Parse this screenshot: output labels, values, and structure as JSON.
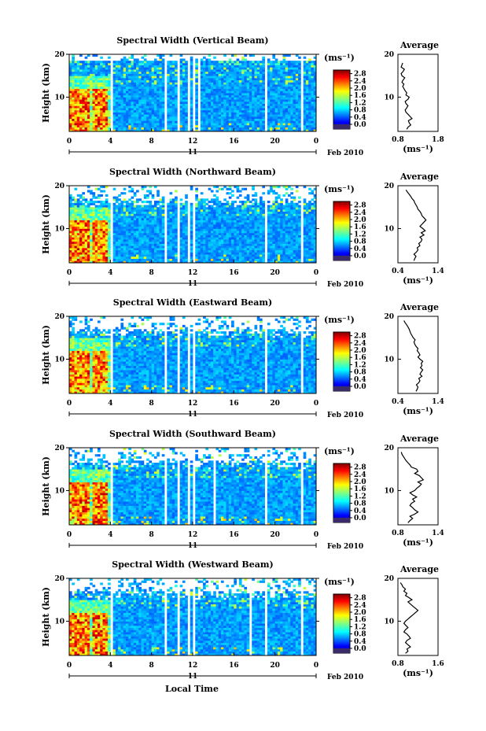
{
  "figure": {
    "xlabel": "Local Time",
    "date_label": "Feb 2010",
    "day_label": "11"
  },
  "chart_data": [
    {
      "type": "heatmap",
      "title": "Spectral Width (Vertical Beam)",
      "xlabel": "Local Time",
      "ylabel": "Height (km)",
      "x_ticks": [
        "0",
        "4",
        "8",
        "12",
        "16",
        "20",
        "0"
      ],
      "xlim_hours": [
        0,
        24
      ],
      "y_ticks": [
        "10",
        "20"
      ],
      "ylim": [
        2,
        20
      ],
      "colorbar": {
        "label": "(ms⁻¹)",
        "ticks": [
          "0.0",
          "0.4",
          "0.8",
          "1.2",
          "1.6",
          "2.0",
          "2.4",
          "2.8"
        ],
        "range": [
          0,
          3.0
        ]
      },
      "data_gaps_hours": [
        [
          4.1,
          4.3
        ],
        [
          8.4,
          8.6
        ],
        [
          9.3,
          9.5
        ],
        [
          10.6,
          10.7
        ],
        [
          11.5,
          11.7
        ],
        [
          12.0,
          12.3
        ],
        [
          12.6,
          12.8
        ],
        [
          19.0,
          19.2
        ],
        [
          22.6,
          22.8
        ]
      ],
      "average_profile": {
        "title": "Average",
        "xlabel": "(ms⁻¹)",
        "x_ticks": [
          "0.8",
          "1.8"
        ],
        "xlim": [
          0.8,
          1.8
        ],
        "y_ticks": [
          "10",
          "20"
        ],
        "height_km": [
          2.5,
          3,
          3.5,
          4,
          4.5,
          5,
          5.5,
          6,
          6.5,
          7,
          7.5,
          8,
          8.5,
          9,
          9.5,
          10,
          10.5,
          11,
          11.5,
          12,
          12.5,
          13,
          13.5,
          14,
          14.5,
          15,
          15.5,
          16,
          16.5,
          17,
          17.5,
          18
        ],
        "width_ms": [
          1.02,
          1.05,
          1.12,
          1.08,
          1.06,
          1.15,
          1.1,
          1.05,
          1.0,
          0.98,
          1.02,
          1.05,
          1.0,
          0.98,
          1.05,
          1.08,
          1.0,
          1.02,
          0.98,
          0.95,
          0.92,
          0.95,
          0.9,
          0.93,
          0.97,
          0.9,
          0.88,
          0.93,
          0.96,
          0.88,
          0.9,
          0.92
        ]
      }
    },
    {
      "type": "heatmap",
      "title": "Spectral Width (Northward Beam)",
      "xlabel": "Local Time",
      "ylabel": "Height (km)",
      "x_ticks": [
        "0",
        "4",
        "8",
        "12",
        "16",
        "20",
        "0"
      ],
      "xlim_hours": [
        0,
        24
      ],
      "y_ticks": [
        "10",
        "20"
      ],
      "ylim": [
        2,
        20
      ],
      "colorbar": {
        "label": "(ms⁻¹)",
        "ticks": [
          "0.0",
          "0.4",
          "0.8",
          "1.2",
          "1.6",
          "2.0",
          "2.4",
          "2.8"
        ],
        "range": [
          0,
          3.0
        ]
      },
      "data_gaps_hours": [
        [
          4.1,
          4.3
        ],
        [
          8.4,
          8.6
        ],
        [
          9.3,
          9.5
        ],
        [
          10.6,
          10.7
        ],
        [
          11.5,
          11.7
        ],
        [
          12.0,
          12.3
        ],
        [
          19.0,
          19.2
        ],
        [
          22.6,
          22.8
        ]
      ],
      "average_profile": {
        "title": "Average",
        "xlabel": "(ms⁻¹)",
        "x_ticks": [
          "0.4",
          "1.4"
        ],
        "xlim": [
          0.4,
          1.4
        ],
        "y_ticks": [
          "10",
          "20"
        ],
        "height_km": [
          2.5,
          3,
          3.5,
          4,
          4.5,
          5,
          5.5,
          6,
          6.5,
          7,
          7.5,
          8,
          8.5,
          9,
          9.5,
          10,
          10.5,
          11,
          11.5,
          12,
          12.5,
          13,
          13.5,
          14,
          14.5,
          15,
          15.5,
          16,
          16.5,
          17,
          17.5,
          18,
          18.5,
          19
        ],
        "width_ms": [
          0.8,
          0.82,
          0.85,
          0.8,
          0.86,
          0.9,
          0.88,
          0.95,
          0.92,
          0.98,
          1.0,
          0.95,
          1.05,
          0.98,
          1.08,
          1.02,
          0.95,
          1.0,
          1.05,
          1.1,
          1.05,
          1.0,
          0.98,
          0.95,
          0.9,
          0.88,
          0.85,
          0.82,
          0.8,
          0.75,
          0.72,
          0.68,
          0.64,
          0.6
        ]
      }
    },
    {
      "type": "heatmap",
      "title": "Spectral Width (Eastward Beam)",
      "xlabel": "Local Time",
      "ylabel": "Height (km)",
      "x_ticks": [
        "0",
        "4",
        "8",
        "12",
        "16",
        "20",
        "0"
      ],
      "xlim_hours": [
        0,
        24
      ],
      "y_ticks": [
        "10",
        "20"
      ],
      "ylim": [
        2,
        20
      ],
      "colorbar": {
        "label": "(ms⁻¹)",
        "ticks": [
          "0.0",
          "0.4",
          "0.8",
          "1.2",
          "1.6",
          "2.0",
          "2.4",
          "2.8"
        ],
        "range": [
          0,
          3.0
        ]
      },
      "data_gaps_hours": [
        [
          4.1,
          4.3
        ],
        [
          8.4,
          8.6
        ],
        [
          9.3,
          9.5
        ],
        [
          10.6,
          10.7
        ],
        [
          11.5,
          11.7
        ],
        [
          12.0,
          12.3
        ],
        [
          19.0,
          19.2
        ],
        [
          22.6,
          22.8
        ]
      ],
      "average_profile": {
        "title": "Average",
        "xlabel": "(ms⁻¹)",
        "x_ticks": [
          "0.4",
          "1.4"
        ],
        "xlim": [
          0.4,
          1.4
        ],
        "y_ticks": [
          "10",
          "20"
        ],
        "height_km": [
          2.5,
          3,
          3.5,
          4,
          4.5,
          5,
          5.5,
          6,
          6.5,
          7,
          7.5,
          8,
          8.5,
          9,
          9.5,
          10,
          10.5,
          11,
          11.5,
          12,
          12.5,
          13,
          13.5,
          14,
          14.5,
          15,
          15.5,
          16,
          16.5,
          17,
          17.5,
          18,
          18.5,
          19
        ],
        "width_ms": [
          0.85,
          0.88,
          0.9,
          0.86,
          0.92,
          0.95,
          0.92,
          1.0,
          0.95,
          0.98,
          1.02,
          0.96,
          1.0,
          0.98,
          1.02,
          0.95,
          0.9,
          0.95,
          0.92,
          0.88,
          0.9,
          0.85,
          0.82,
          0.8,
          0.83,
          0.78,
          0.75,
          0.72,
          0.7,
          0.68,
          0.65,
          0.62,
          0.58,
          0.55
        ]
      }
    },
    {
      "type": "heatmap",
      "title": "Spectral Width (Southward Beam)",
      "xlabel": "Local Time",
      "ylabel": "Height (km)",
      "x_ticks": [
        "0",
        "4",
        "8",
        "12",
        "16",
        "20",
        "0"
      ],
      "xlim_hours": [
        0,
        24
      ],
      "y_ticks": [
        "10",
        "20"
      ],
      "ylim": [
        2,
        20
      ],
      "colorbar": {
        "label": "(ms⁻¹)",
        "ticks": [
          "0.0",
          "0.4",
          "0.8",
          "1.2",
          "1.6",
          "2.0",
          "2.4",
          "2.8"
        ],
        "range": [
          0,
          3.0
        ]
      },
      "data_gaps_hours": [
        [
          4.1,
          4.3
        ],
        [
          8.4,
          8.6
        ],
        [
          9.3,
          9.5
        ],
        [
          10.6,
          10.7
        ],
        [
          11.5,
          11.7
        ],
        [
          12.0,
          12.3
        ],
        [
          14.0,
          14.2
        ],
        [
          19.0,
          19.2
        ],
        [
          22.6,
          22.8
        ]
      ],
      "average_profile": {
        "title": "Average",
        "xlabel": "(ms⁻¹)",
        "x_ticks": [
          "0.8",
          "1.4"
        ],
        "xlim": [
          0.8,
          1.4
        ],
        "y_ticks": [
          "10",
          "20"
        ],
        "height_km": [
          2.5,
          3,
          3.5,
          4,
          4.5,
          5,
          5.5,
          6,
          6.5,
          7,
          7.5,
          8,
          8.5,
          9,
          9.5,
          10,
          10.5,
          11,
          11.5,
          12,
          12.5,
          13,
          13.5,
          14,
          14.5,
          15,
          15.5,
          16,
          16.5,
          17,
          17.5,
          18,
          18.5,
          19
        ],
        "width_ms": [
          0.95,
          0.98,
          1.02,
          0.98,
          1.05,
          1.1,
          1.05,
          1.02,
          0.98,
          1.0,
          1.05,
          1.02,
          1.08,
          1.02,
          0.98,
          1.05,
          1.08,
          1.12,
          1.15,
          1.1,
          1.18,
          1.15,
          1.12,
          1.05,
          1.1,
          1.08,
          1.0,
          0.98,
          0.95,
          0.92,
          0.9,
          0.88,
          0.86,
          0.85
        ]
      }
    },
    {
      "type": "heatmap",
      "title": "Spectral Width (Westward Beam)",
      "xlabel": "Local Time",
      "ylabel": "Height (km)",
      "x_ticks": [
        "0",
        "4",
        "8",
        "12",
        "16",
        "20",
        "0"
      ],
      "xlim_hours": [
        0,
        24
      ],
      "y_ticks": [
        "10",
        "20"
      ],
      "ylim": [
        2,
        20
      ],
      "colorbar": {
        "label": "(ms⁻¹)",
        "ticks": [
          "0.0",
          "0.4",
          "0.8",
          "1.2",
          "1.6",
          "2.0",
          "2.4",
          "2.8"
        ],
        "range": [
          0,
          3.0
        ]
      },
      "data_gaps_hours": [
        [
          4.1,
          4.3
        ],
        [
          8.4,
          8.6
        ],
        [
          9.3,
          9.5
        ],
        [
          10.6,
          10.7
        ],
        [
          11.5,
          11.7
        ],
        [
          12.0,
          12.3
        ],
        [
          17.6,
          17.7
        ],
        [
          19.0,
          19.2
        ],
        [
          22.6,
          22.8
        ]
      ],
      "average_profile": {
        "title": "Average",
        "xlabel": "(ms⁻¹)",
        "x_ticks": [
          "0.8",
          "1.6"
        ],
        "xlim": [
          0.8,
          1.6
        ],
        "y_ticks": [
          "10",
          "20"
        ],
        "height_km": [
          2.5,
          3,
          3.5,
          4,
          4.5,
          5,
          5.5,
          6,
          6.5,
          7,
          7.5,
          8,
          8.5,
          9,
          9.5,
          10,
          10.5,
          11,
          11.5,
          12,
          12.5,
          13,
          13.5,
          14,
          14.5,
          15,
          15.5,
          16,
          16.5,
          17,
          17.5,
          18,
          18.5,
          19
        ],
        "width_ms": [
          0.95,
          1.0,
          0.98,
          1.05,
          1.0,
          0.95,
          0.98,
          1.05,
          1.02,
          0.98,
          0.92,
          0.95,
          1.0,
          0.96,
          0.92,
          0.95,
          1.0,
          1.05,
          1.1,
          1.15,
          1.2,
          1.15,
          1.1,
          1.05,
          1.0,
          1.08,
          1.02,
          0.95,
          0.98,
          0.92,
          0.95,
          0.9,
          0.88,
          0.85
        ]
      }
    }
  ]
}
